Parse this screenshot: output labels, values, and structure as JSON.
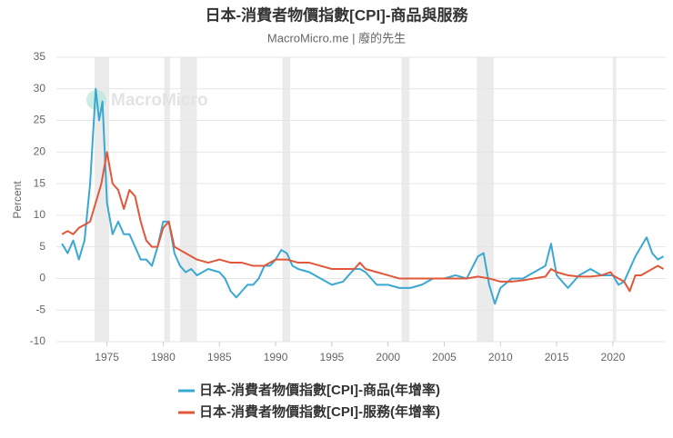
{
  "chart_data": {
    "type": "line",
    "title": "日本-消費者物價指數[CPI]-商品與服務",
    "subtitle": "MacroMicro.me | 廢的先生",
    "watermark": "MacroMicro",
    "y_label": "Percent",
    "xlim": [
      1970.5,
      2024.7
    ],
    "xticks": [
      1975,
      1980,
      1985,
      1990,
      1995,
      2000,
      2005,
      2010,
      2015,
      2020
    ],
    "ylim": [
      -10,
      35
    ],
    "yticks": [
      -10,
      -5,
      0,
      5,
      10,
      15,
      20,
      25,
      30,
      35
    ],
    "grid": true,
    "shaded_periods": [
      [
        1973.9,
        1975.2
      ],
      [
        1980.1,
        1980.6
      ],
      [
        1981.5,
        1983.0
      ],
      [
        1990.6,
        1991.3
      ],
      [
        2001.2,
        2001.9
      ],
      [
        2007.9,
        2009.4
      ],
      [
        2020.0,
        2020.3
      ]
    ],
    "series": [
      {
        "name": "日本-消費者物價指數[CPI]-商品(年增率)",
        "color": "#3aa8d3",
        "x": [
          1971,
          1971.5,
          1972,
          1972.5,
          1973,
          1973.5,
          1974,
          1974.3,
          1974.6,
          1975,
          1975.5,
          1976,
          1976.5,
          1977,
          1977.5,
          1978,
          1978.5,
          1979,
          1979.5,
          1980,
          1980.5,
          1981,
          1981.5,
          1982,
          1982.5,
          1983,
          1984,
          1985,
          1985.5,
          1986,
          1986.5,
          1987,
          1987.5,
          1988,
          1988.5,
          1989,
          1989.5,
          1990,
          1990.5,
          1991,
          1991.5,
          1992,
          1993,
          1994,
          1995,
          1996,
          1997,
          1997.5,
          1998,
          1999,
          2000,
          2001,
          2002,
          2003,
          2004,
          2005,
          2006,
          2007,
          2008,
          2008.5,
          2009,
          2009.5,
          2010,
          2011,
          2012,
          2013,
          2014,
          2014.5,
          2015,
          2016,
          2017,
          2018,
          2019,
          2020,
          2020.5,
          2021,
          2021.5,
          2022,
          2022.5,
          2023,
          2023.5,
          2024,
          2024.5
        ],
        "values": [
          5.5,
          4,
          6,
          3,
          6,
          15,
          30,
          25,
          28,
          12,
          7,
          9,
          7,
          7,
          5,
          3,
          3,
          2,
          5,
          9,
          9,
          4,
          2,
          1,
          1.5,
          0.5,
          1.5,
          1,
          0,
          -2,
          -3,
          -2,
          -1,
          -1,
          0,
          2,
          2,
          3,
          4.5,
          4,
          2,
          1.5,
          1,
          0,
          -1,
          -0.5,
          1.5,
          1.5,
          1,
          -1,
          -1,
          -1.5,
          -1.5,
          -1,
          0,
          0,
          0.5,
          0,
          3.5,
          4,
          -1,
          -4,
          -1.5,
          0,
          0,
          1,
          2,
          5.5,
          0.5,
          -1.5,
          0.5,
          1.5,
          0.5,
          0.5,
          -1,
          -0.5,
          1.5,
          3.5,
          5,
          6.5,
          4,
          3,
          3.5
        ]
      },
      {
        "name": "日本-消費者物價指數[CPI]-服務(年增率)",
        "color": "#e0573a",
        "x": [
          1971,
          1971.5,
          1972,
          1972.5,
          1973,
          1973.5,
          1974,
          1974.5,
          1975,
          1975.5,
          1976,
          1976.5,
          1977,
          1977.5,
          1978,
          1978.5,
          1979,
          1979.5,
          1980,
          1980.5,
          1981,
          1981.5,
          1982,
          1983,
          1984,
          1985,
          1986,
          1987,
          1988,
          1989,
          1990,
          1991,
          1992,
          1993,
          1994,
          1995,
          1996,
          1997,
          1997.5,
          1998,
          1999,
          2000,
          2001,
          2002,
          2003,
          2004,
          2005,
          2006,
          2007,
          2008,
          2009,
          2010,
          2011,
          2012,
          2013,
          2014,
          2014.5,
          2015,
          2016,
          2017,
          2018,
          2019,
          2019.8,
          2020,
          2020.5,
          2021,
          2021.5,
          2022,
          2022.5,
          2023,
          2023.5,
          2024,
          2024.5
        ],
        "values": [
          7,
          7.5,
          7,
          8,
          8.5,
          9,
          12,
          15,
          20,
          15,
          14,
          11,
          14,
          13,
          9,
          6,
          5,
          5,
          8,
          9,
          5,
          4.5,
          4,
          3,
          2.5,
          3,
          2.5,
          2.5,
          2,
          2,
          3,
          3,
          2.5,
          2.5,
          2,
          1.5,
          1.5,
          1.5,
          2.5,
          1.5,
          1,
          0.5,
          0,
          0,
          0,
          0,
          0,
          0,
          0,
          0.3,
          0,
          -0.5,
          -0.5,
          -0.3,
          0,
          0.3,
          1.5,
          1,
          0.5,
          0.3,
          0.3,
          0.5,
          1,
          0.5,
          0,
          -0.5,
          -2,
          0.5,
          0.5,
          1,
          1.5,
          2,
          1.5
        ]
      }
    ]
  }
}
